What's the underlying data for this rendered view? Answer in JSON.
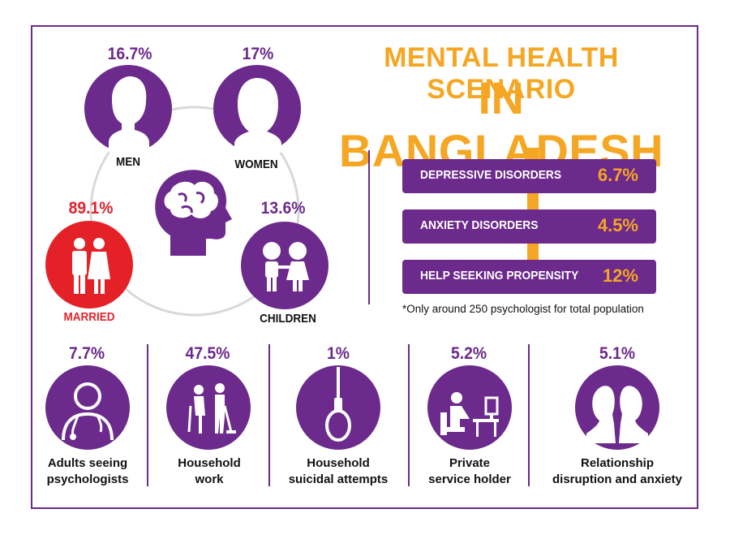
{
  "title": {
    "line1": "MENTAL HEALTH SCENARIO",
    "line2": "IN BANGLADESH"
  },
  "top_groups": [
    {
      "key": "men",
      "value": "16.7%",
      "label": "MEN",
      "icon": "man-head-icon"
    },
    {
      "key": "women",
      "value": "17%",
      "label": "WOMEN",
      "icon": "woman-head-icon"
    },
    {
      "key": "married",
      "value": "89.1%",
      "label": "MARRIED",
      "icon": "couple-icon"
    },
    {
      "key": "children",
      "value": "13.6%",
      "label": "CHILDREN",
      "icon": "children-icon"
    }
  ],
  "disorders": [
    {
      "label": "DEPRESSIVE DISORDERS",
      "value": "6.7%"
    },
    {
      "label": "ANXIETY DISORDERS",
      "value": "4.5%"
    },
    {
      "label": "HELP SEEKING PROPENSITY",
      "value": "12%"
    }
  ],
  "note": "*Only around 250 psychologist for total population",
  "bottom_stats": [
    {
      "value": "7.7%",
      "label_line1": "Adults seeing",
      "label_line2": "psychologists",
      "icon": "doctor-icon"
    },
    {
      "value": "47.5%",
      "label_line1": "Household",
      "label_line2": "work",
      "icon": "cleaning-icon"
    },
    {
      "value": "1%",
      "label_line1": "Household",
      "label_line2": "suicidal attempts",
      "icon": "noose-icon"
    },
    {
      "value": "5.2%",
      "label_line1": "Private",
      "label_line2": "service holder",
      "icon": "office-worker-icon"
    },
    {
      "value": "5.1%",
      "label_line1": "Relationship",
      "label_line2": "disruption and anxiety",
      "icon": "two-heads-icon"
    }
  ],
  "colors": {
    "purple": "#6b2a8c",
    "orange": "#f5a623",
    "red": "#e52128"
  }
}
